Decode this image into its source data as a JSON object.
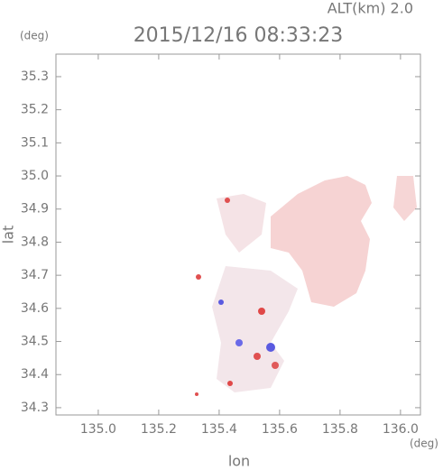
{
  "chart_data": {
    "type": "map",
    "title": "2015/12/16 08:33:23",
    "altitude_label": "ALT(km) 2.0",
    "y_unit": "(deg)",
    "x_unit": "(deg)",
    "xlabel": "lon",
    "ylabel": "lat",
    "xlim": [
      134.86,
      136.066
    ],
    "ylim": [
      34.278,
      35.368
    ],
    "xticks": [
      {
        "value": 135,
        "label": "135.0"
      },
      135.2,
      135.4,
      135.6,
      135.8,
      {
        "value": 136,
        "label": "136.0"
      }
    ],
    "yticks": [
      34.3,
      34.4,
      34.5,
      34.6,
      34.7,
      34.8,
      34.9,
      {
        "value": 35,
        "label": "35.0"
      },
      35.1,
      35.2,
      35.3
    ]
  }
}
